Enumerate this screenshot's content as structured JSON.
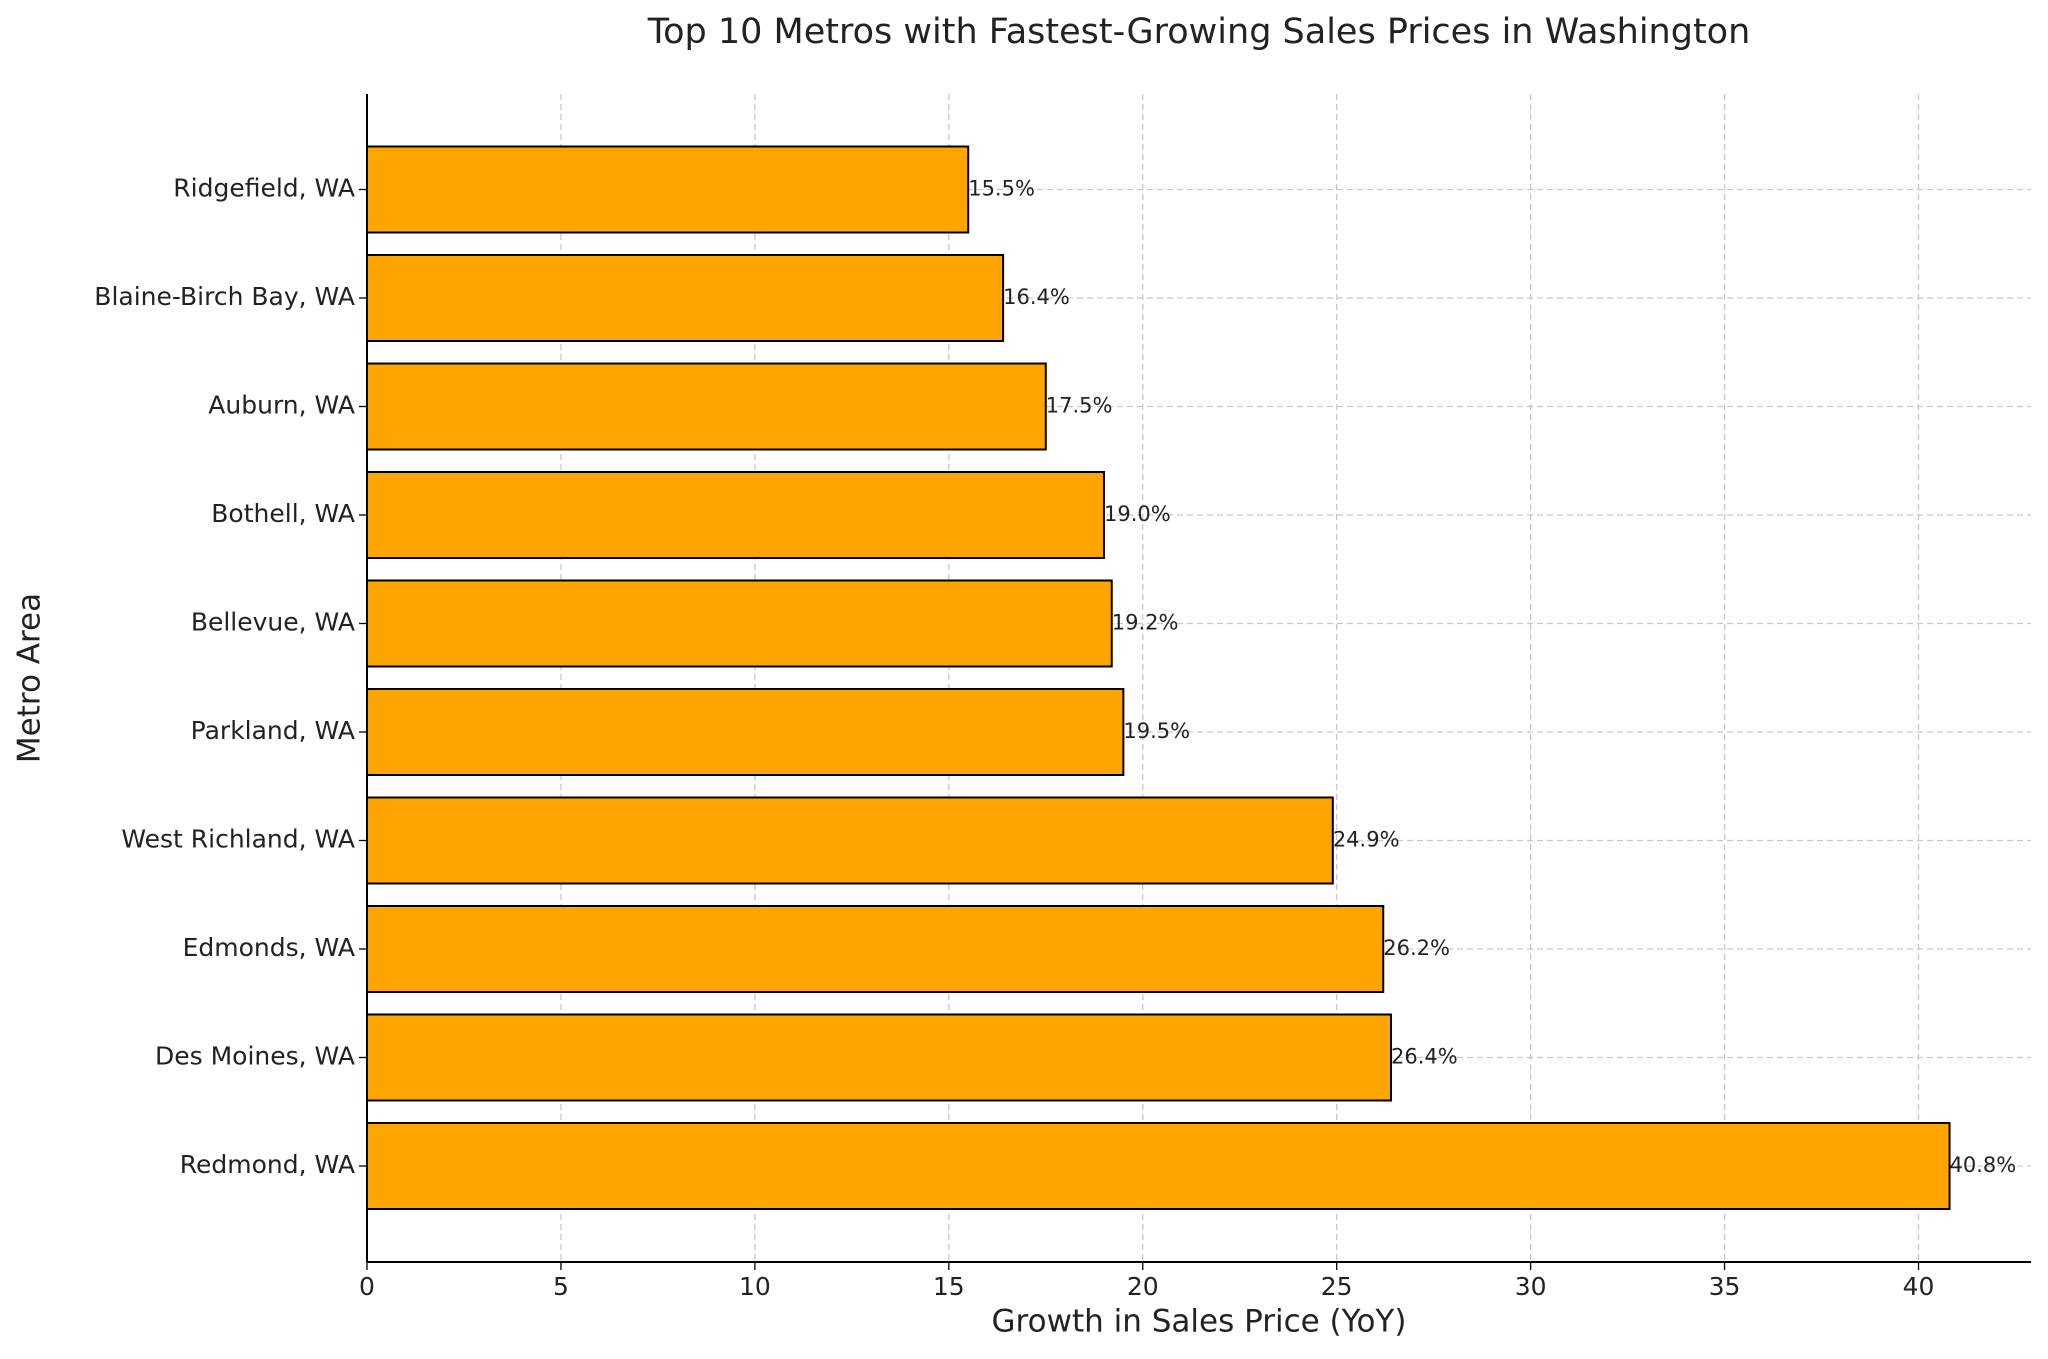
{
  "chart_data": {
    "type": "barh",
    "title": "Top 10 Metros with Fastest-Growing Sales Prices in Washington",
    "x_label": "Growth in Sales Price (YoY)",
    "y_label": "Metro Area",
    "categories": [
      "Redmond, WA",
      "Des Moines, WA",
      "Edmonds, WA",
      "West Richland, WA",
      "Parkland, WA",
      "Bellevue, WA",
      "Bothell, WA",
      "Auburn, WA",
      "Blaine-Birch Bay, WA",
      "Ridgefield, WA"
    ],
    "values": [
      40.8,
      26.4,
      26.2,
      24.9,
      19.5,
      19.2,
      19.0,
      17.5,
      16.4,
      15.5
    ],
    "value_labels": [
      "40.8%",
      "26.4%",
      "26.2%",
      "24.9%",
      "19.5%",
      "19.2%",
      "19.0%",
      "17.5%",
      "16.4%",
      "15.5%"
    ],
    "color": "#ffa500",
    "edge_color": "#000000",
    "xlim": [
      0,
      42.9
    ],
    "xticks": [
      0,
      5,
      10,
      15,
      20,
      25,
      30,
      35,
      40
    ],
    "grid": true
  }
}
